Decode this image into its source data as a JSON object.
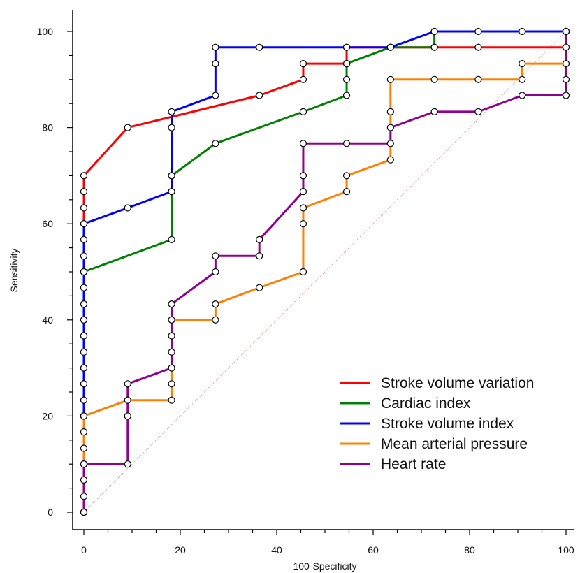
{
  "chart_data": {
    "type": "line",
    "title": "",
    "xlabel": "100-Specificity",
    "ylabel": "Sensitivity",
    "xlim": [
      0,
      100
    ],
    "ylim": [
      0,
      100
    ],
    "x_ticks": [
      0,
      20,
      40,
      60,
      80,
      100
    ],
    "y_ticks": [
      0,
      20,
      40,
      60,
      80,
      100
    ],
    "grid": false,
    "legend_position": "bottom-right",
    "reference_line": {
      "from": [
        0,
        0
      ],
      "to": [
        100,
        100
      ],
      "color": "#e0a0a0",
      "style": "dotted"
    },
    "series": [
      {
        "name": "Stroke volume variation",
        "color": "#ff0000",
        "points": [
          [
            0,
            0
          ],
          [
            0,
            3.3
          ],
          [
            0,
            6.7
          ],
          [
            0,
            10
          ],
          [
            0,
            13.3
          ],
          [
            0,
            16.7
          ],
          [
            0,
            20
          ],
          [
            0,
            23.3
          ],
          [
            0,
            26.7
          ],
          [
            0,
            30
          ],
          [
            0,
            33.3
          ],
          [
            0,
            36.7
          ],
          [
            0,
            40
          ],
          [
            0,
            43.3
          ],
          [
            0,
            46.7
          ],
          [
            0,
            50
          ],
          [
            0,
            53.3
          ],
          [
            0,
            56.7
          ],
          [
            0,
            60
          ],
          [
            0,
            63.3
          ],
          [
            0,
            66.7
          ],
          [
            0,
            70
          ],
          [
            9.1,
            80
          ],
          [
            36.4,
            86.7
          ],
          [
            45.5,
            90
          ],
          [
            45.5,
            93.3
          ],
          [
            54.5,
            93.3
          ],
          [
            54.5,
            96.7
          ],
          [
            63.6,
            96.7
          ],
          [
            72.7,
            96.7
          ],
          [
            81.8,
            96.7
          ],
          [
            100,
            96.7
          ],
          [
            100,
            100
          ]
        ]
      },
      {
        "name": "Cardiac index",
        "color": "#008000",
        "points": [
          [
            0,
            0
          ],
          [
            0,
            10
          ],
          [
            0,
            20
          ],
          [
            0,
            30
          ],
          [
            0,
            40
          ],
          [
            0,
            50
          ],
          [
            18.2,
            56.7
          ],
          [
            18.2,
            66.7
          ],
          [
            18.2,
            70
          ],
          [
            27.3,
            76.7
          ],
          [
            45.5,
            83.3
          ],
          [
            54.5,
            86.7
          ],
          [
            54.5,
            90
          ],
          [
            54.5,
            93.3
          ],
          [
            63.6,
            96.7
          ],
          [
            72.7,
            96.7
          ],
          [
            72.7,
            100
          ],
          [
            100,
            100
          ]
        ]
      },
      {
        "name": "Stroke volume index",
        "color": "#0000ff",
        "points": [
          [
            0,
            0
          ],
          [
            0,
            10
          ],
          [
            0,
            20
          ],
          [
            0,
            23.3
          ],
          [
            0,
            26.7
          ],
          [
            0,
            30
          ],
          [
            0,
            36.7
          ],
          [
            0,
            40
          ],
          [
            0,
            43.3
          ],
          [
            0,
            46.7
          ],
          [
            0,
            50
          ],
          [
            0,
            60
          ],
          [
            9.1,
            63.3
          ],
          [
            18.2,
            66.7
          ],
          [
            18.2,
            70
          ],
          [
            18.2,
            80
          ],
          [
            18.2,
            83.3
          ],
          [
            27.3,
            86.7
          ],
          [
            27.3,
            93.3
          ],
          [
            27.3,
            96.7
          ],
          [
            36.4,
            96.7
          ],
          [
            54.5,
            96.7
          ],
          [
            63.6,
            96.7
          ],
          [
            72.7,
            100
          ],
          [
            81.8,
            100
          ],
          [
            90.9,
            100
          ],
          [
            100,
            100
          ]
        ]
      },
      {
        "name": "Mean arterial pressure",
        "color": "#ff8000",
        "points": [
          [
            0,
            0
          ],
          [
            0,
            10
          ],
          [
            0,
            20
          ],
          [
            9.1,
            23.3
          ],
          [
            18.2,
            23.3
          ],
          [
            18.2,
            26.7
          ],
          [
            18.2,
            40
          ],
          [
            27.3,
            40
          ],
          [
            27.3,
            43.3
          ],
          [
            36.4,
            46.7
          ],
          [
            45.5,
            50
          ],
          [
            45.5,
            60
          ],
          [
            45.5,
            63.3
          ],
          [
            54.5,
            66.7
          ],
          [
            54.5,
            70
          ],
          [
            63.6,
            73.3
          ],
          [
            63.6,
            83.3
          ],
          [
            63.6,
            90
          ],
          [
            72.7,
            90
          ],
          [
            81.8,
            90
          ],
          [
            90.9,
            90
          ],
          [
            90.9,
            93.3
          ],
          [
            100,
            93.3
          ],
          [
            100,
            100
          ]
        ]
      },
      {
        "name": "Heart rate",
        "color": "#900090",
        "points": [
          [
            0,
            0
          ],
          [
            0,
            10
          ],
          [
            9.1,
            10
          ],
          [
            9.1,
            20
          ],
          [
            9.1,
            26.7
          ],
          [
            18.2,
            30
          ],
          [
            18.2,
            33.3
          ],
          [
            18.2,
            36.7
          ],
          [
            18.2,
            40
          ],
          [
            18.2,
            43.3
          ],
          [
            27.3,
            50
          ],
          [
            27.3,
            53.3
          ],
          [
            36.4,
            53.3
          ],
          [
            36.4,
            56.7
          ],
          [
            45.5,
            66.7
          ],
          [
            45.5,
            70
          ],
          [
            45.5,
            76.7
          ],
          [
            54.5,
            76.7
          ],
          [
            63.6,
            76.7
          ],
          [
            63.6,
            80
          ],
          [
            72.7,
            83.3
          ],
          [
            81.8,
            83.3
          ],
          [
            90.9,
            86.7
          ],
          [
            100,
            86.7
          ],
          [
            100,
            90
          ],
          [
            100,
            100
          ]
        ]
      }
    ]
  }
}
